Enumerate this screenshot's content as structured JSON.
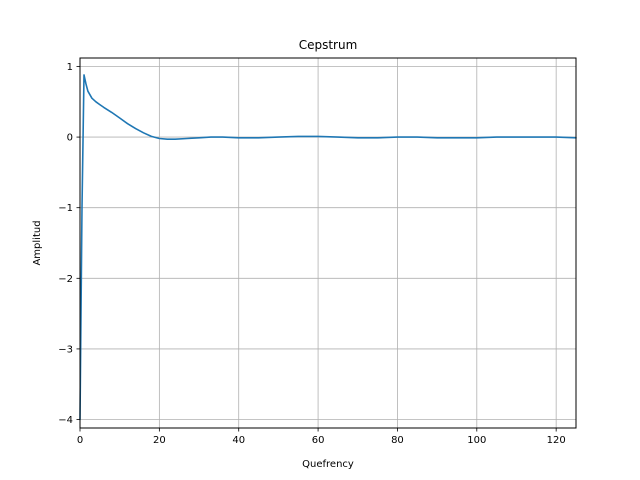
{
  "chart_data": {
    "type": "line",
    "title": "Cepstrum",
    "xlabel": "Quefrency",
    "ylabel": "Amplitud",
    "xlim": [
      0,
      125
    ],
    "ylim": [
      -4.12,
      1.12
    ],
    "xticks": [
      0,
      20,
      40,
      60,
      80,
      100,
      120
    ],
    "yticks": [
      -4,
      -3,
      -2,
      -1,
      0,
      1
    ],
    "ytick_labels": [
      "−4",
      "−3",
      "−2",
      "−1",
      "0",
      "1"
    ],
    "grid": true,
    "colors": {
      "line": "#1f77b4",
      "grid": "#b0b0b0"
    },
    "series": [
      {
        "x": [
          0,
          0.5,
          1,
          1.5,
          2,
          3,
          4,
          5,
          6,
          8,
          10,
          12,
          14,
          16,
          18,
          20,
          22,
          24,
          27,
          30,
          33,
          36,
          40,
          45,
          50,
          55,
          60,
          65,
          70,
          75,
          80,
          85,
          90,
          95,
          100,
          105,
          110,
          115,
          120,
          125
        ],
        "y": [
          -4.0,
          -1.0,
          0.88,
          0.75,
          0.65,
          0.55,
          0.5,
          0.46,
          0.42,
          0.35,
          0.27,
          0.19,
          0.12,
          0.06,
          0.01,
          -0.02,
          -0.03,
          -0.03,
          -0.02,
          -0.01,
          0.0,
          0.0,
          -0.01,
          -0.01,
          0.0,
          0.01,
          0.01,
          0.0,
          -0.01,
          -0.01,
          0.0,
          0.0,
          -0.01,
          -0.01,
          -0.01,
          0.0,
          0.0,
          0.0,
          0.0,
          -0.01
        ]
      }
    ]
  }
}
